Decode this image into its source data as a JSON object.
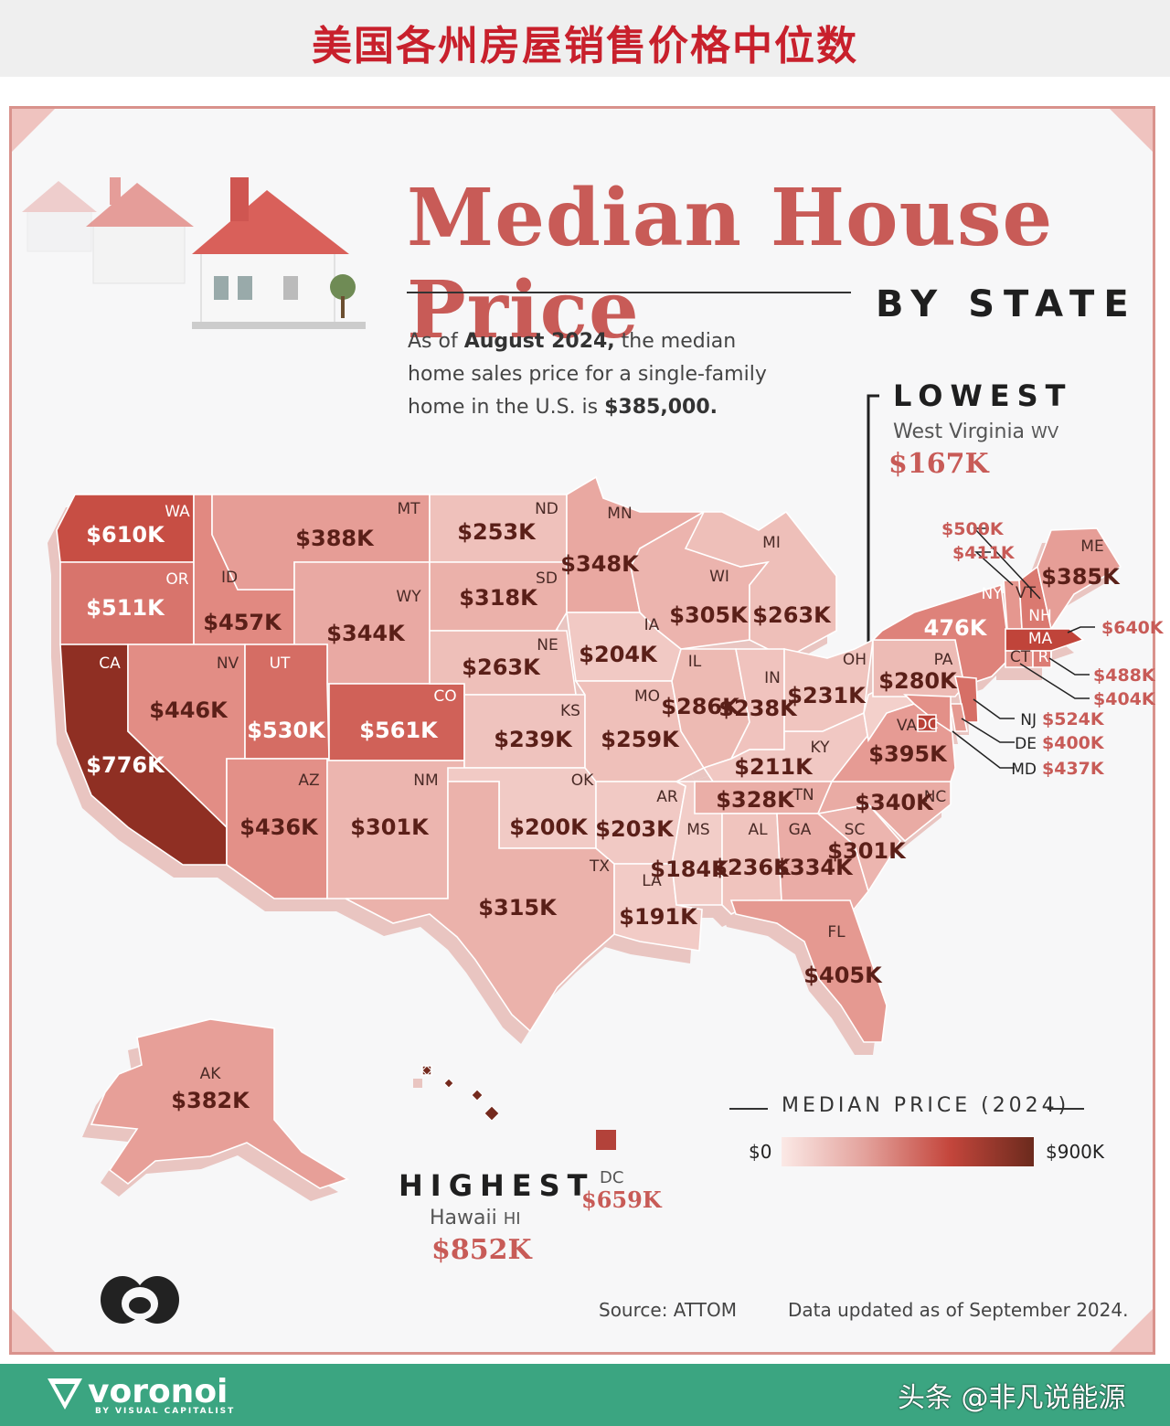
{
  "banner": {
    "title": "美国各州房屋销售价格中位数"
  },
  "header": {
    "title": "Median House Price",
    "subtitle": "BY STATE",
    "intro_pre": "As of ",
    "intro_date": "August 2024,",
    "intro_mid": " the median home sales price for a single-family home in the U.S. is ",
    "intro_value": "$385,000."
  },
  "lowest": {
    "heading": "LOWEST",
    "state": "West Virginia",
    "code": "WV",
    "value": "$167K"
  },
  "highest": {
    "heading": "HIGHEST",
    "state": "Hawaii",
    "code": "HI",
    "value": "$852K"
  },
  "dc_callout": {
    "code": "DC",
    "value": "$659K"
  },
  "legend": {
    "title": "MEDIAN PRICE (2024)",
    "min": "$0",
    "max": "$900K"
  },
  "source": "Source: ATTOM",
  "updated": "Data updated as of September 2024.",
  "footer": {
    "brand": "voronoi",
    "brand_sub": "BY VISUAL CAPITALIST",
    "watermark": "头条 @非凡说能源"
  },
  "colors": {
    "accent": "#c85b57",
    "scale_low": "#fbe9e6",
    "scale_high": "#6b2a1d",
    "footer": "#3ba581",
    "banner_text": "#c8202c"
  },
  "chart_data": {
    "type": "heatmap",
    "title": "Median House Price",
    "subtitle": "BY STATE",
    "unit": "USD thousands",
    "color_range": [
      0,
      900
    ],
    "states": [
      {
        "code": "WA",
        "value": 610,
        "label": "$610K"
      },
      {
        "code": "OR",
        "value": 511,
        "label": "$511K"
      },
      {
        "code": "CA",
        "value": 776,
        "label": "$776K"
      },
      {
        "code": "ID",
        "value": 457,
        "label": "$457K"
      },
      {
        "code": "NV",
        "value": 446,
        "label": "$446K"
      },
      {
        "code": "MT",
        "value": 388,
        "label": "$388K"
      },
      {
        "code": "WY",
        "value": 344,
        "label": "$344K"
      },
      {
        "code": "UT",
        "value": 530,
        "label": "$530K"
      },
      {
        "code": "CO",
        "value": 561,
        "label": "$561K"
      },
      {
        "code": "AZ",
        "value": 436,
        "label": "$436K"
      },
      {
        "code": "NM",
        "value": 301,
        "label": "$301K"
      },
      {
        "code": "ND",
        "value": 253,
        "label": "$253K"
      },
      {
        "code": "SD",
        "value": 318,
        "label": "$318K"
      },
      {
        "code": "NE",
        "value": 263,
        "label": "$263K"
      },
      {
        "code": "KS",
        "value": 239,
        "label": "$239K"
      },
      {
        "code": "OK",
        "value": 200,
        "label": "$200K"
      },
      {
        "code": "TX",
        "value": 315,
        "label": "$315K"
      },
      {
        "code": "MN",
        "value": 348,
        "label": "$348K"
      },
      {
        "code": "IA",
        "value": 204,
        "label": "$204K"
      },
      {
        "code": "MO",
        "value": 259,
        "label": "$259K"
      },
      {
        "code": "AR",
        "value": 203,
        "label": "$203K"
      },
      {
        "code": "LA",
        "value": 191,
        "label": "$191K"
      },
      {
        "code": "WI",
        "value": 305,
        "label": "$305K"
      },
      {
        "code": "IL",
        "value": 286,
        "label": "$286K"
      },
      {
        "code": "MS",
        "value": 184,
        "label": "$184K"
      },
      {
        "code": "MI",
        "value": 263,
        "label": "$263K"
      },
      {
        "code": "IN",
        "value": 238,
        "label": "$238K"
      },
      {
        "code": "KY",
        "value": 211,
        "label": "$211K"
      },
      {
        "code": "TN",
        "value": 328,
        "label": "$328K"
      },
      {
        "code": "AL",
        "value": 236,
        "label": "$236K"
      },
      {
        "code": "OH",
        "value": 231,
        "label": "$231K"
      },
      {
        "code": "GA",
        "value": 334,
        "label": "$334K"
      },
      {
        "code": "FL",
        "value": 405,
        "label": "$405K"
      },
      {
        "code": "SC",
        "value": 301,
        "label": "$301K"
      },
      {
        "code": "NC",
        "value": 340,
        "label": "$340K"
      },
      {
        "code": "VA",
        "value": 395,
        "label": "$395K"
      },
      {
        "code": "WV",
        "value": 167,
        "label": "$167K"
      },
      {
        "code": "PA",
        "value": 280,
        "label": "$280K"
      },
      {
        "code": "NY",
        "value": 476,
        "label": "476K"
      },
      {
        "code": "VT",
        "value": 411,
        "label": "$411K"
      },
      {
        "code": "NH",
        "value": 500,
        "label": "$500K"
      },
      {
        "code": "ME",
        "value": 385,
        "label": "$385K"
      },
      {
        "code": "MA",
        "value": 640,
        "label": "$640K"
      },
      {
        "code": "RI",
        "value": 488,
        "label": "$488K"
      },
      {
        "code": "CT",
        "value": 404,
        "label": "$404K"
      },
      {
        "code": "NJ",
        "value": 524,
        "label": "$524K"
      },
      {
        "code": "DE",
        "value": 400,
        "label": "$400K"
      },
      {
        "code": "MD",
        "value": 437,
        "label": "$437K"
      },
      {
        "code": "DC",
        "value": 659,
        "label": "$659K"
      },
      {
        "code": "AK",
        "value": 382,
        "label": "$382K"
      },
      {
        "code": "HI",
        "value": 852,
        "label": "$852K"
      }
    ]
  }
}
